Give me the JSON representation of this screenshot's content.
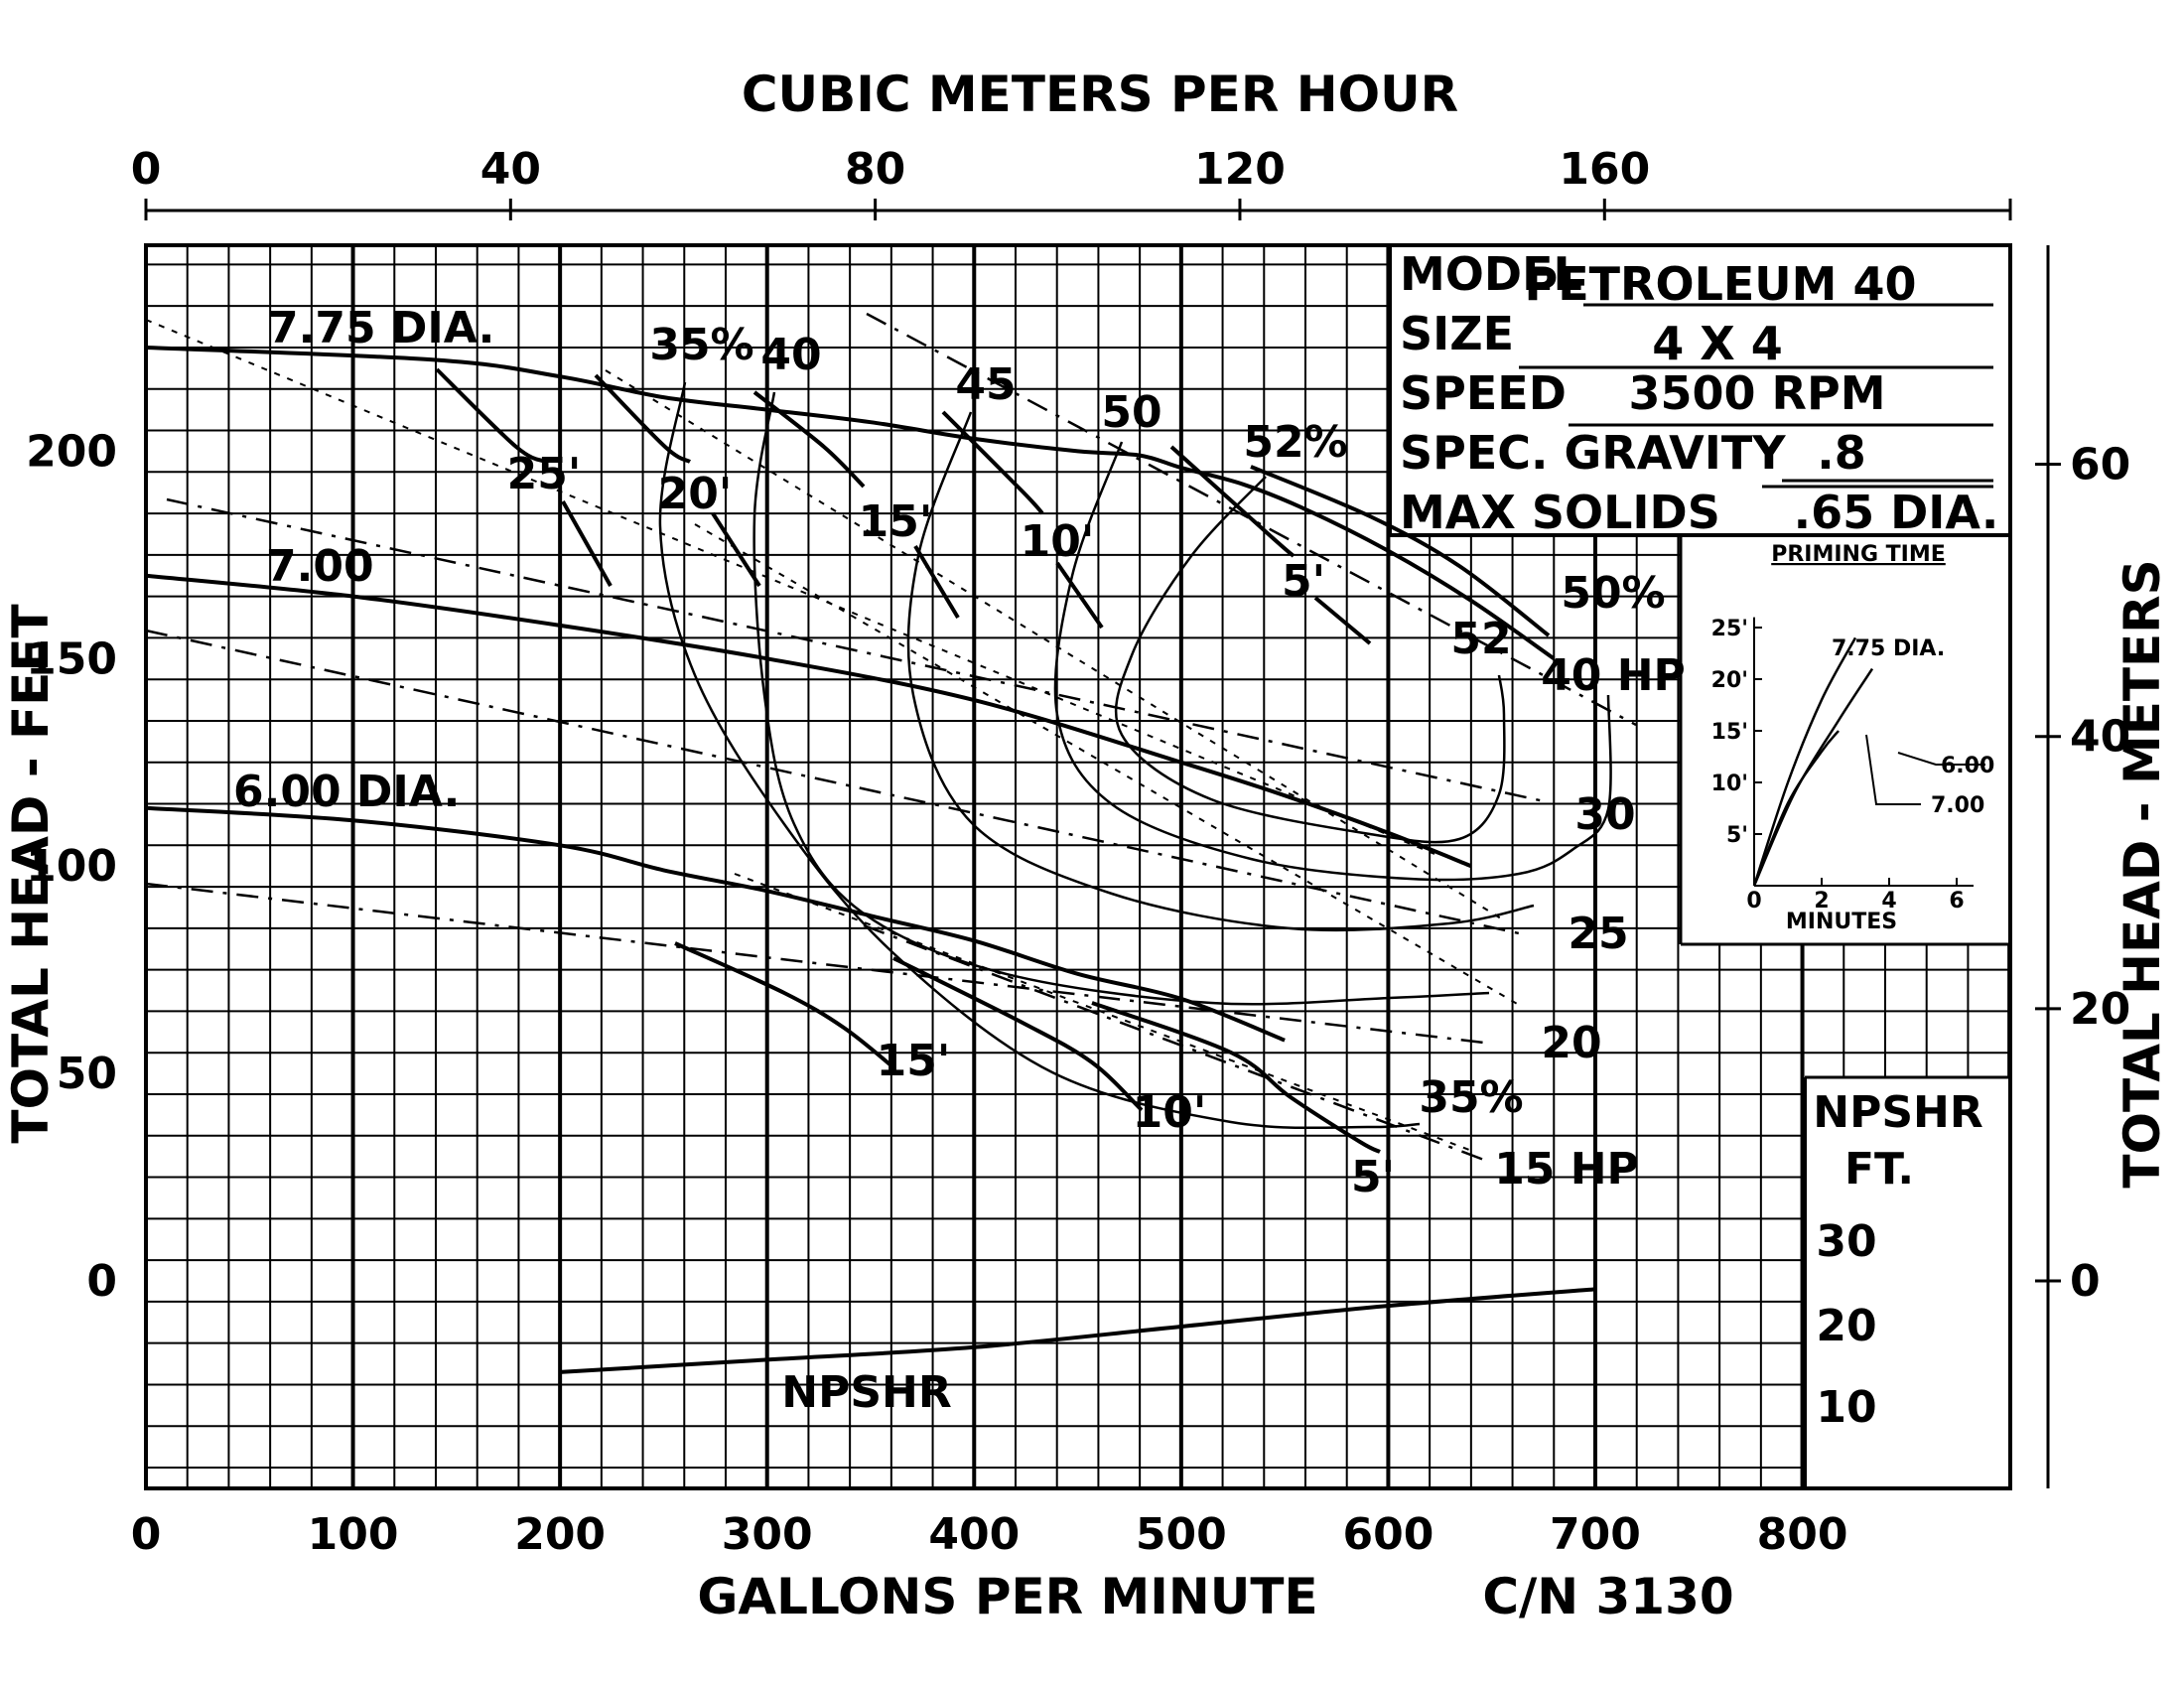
{
  "chart_data": {
    "type": "line",
    "title": "",
    "top_axis": {
      "label": "CUBIC METERS PER HOUR",
      "ticks": [
        0,
        40,
        80,
        120,
        160
      ]
    },
    "x_axis": {
      "label": "GALLONS PER MINUTE",
      "range": [
        0,
        900
      ],
      "ticks": [
        0,
        100,
        200,
        300,
        400,
        500,
        600,
        700,
        800
      ]
    },
    "y_axis": {
      "label": "TOTAL HEAD - FEET",
      "range": [
        -50,
        250
      ],
      "ticks": [
        0,
        50,
        100,
        150,
        200
      ]
    },
    "right_axis": {
      "label": "TOTAL HEAD - METERS",
      "ticks": [
        0,
        20,
        40,
        60
      ]
    },
    "curve_number": "C/N 3130",
    "grid": true,
    "spec_block": {
      "model_label": "MODEL",
      "model": "PETROLEUM 40",
      "size_label": "SIZE",
      "size": "4 X 4",
      "speed_label": "SPEED",
      "speed": "3500 RPM",
      "gravity_label": "SPEC. GRAVITY",
      "gravity": ".8",
      "solids_label": "MAX SOLIDS",
      "solids": ".65 DIA."
    },
    "series": [
      {
        "name": "7.75 DIA.",
        "x": [
          0,
          140,
          200,
          250,
          300,
          350,
          400,
          450,
          480,
          500,
          530,
          560,
          600,
          640,
          680
        ],
        "y": [
          225,
          222,
          218,
          213,
          210,
          207,
          203,
          200,
          199,
          196,
          192,
          186,
          176,
          164,
          150
        ]
      },
      {
        "name": "7.00",
        "x": [
          0,
          100,
          200,
          300,
          400,
          500,
          550,
          600,
          640
        ],
        "y": [
          170,
          165,
          158,
          150,
          140,
          125,
          117,
          108,
          100
        ]
      },
      {
        "name": "6.00 DIA.",
        "x": [
          0,
          100,
          200,
          250,
          300,
          350,
          400,
          450,
          500,
          550
        ],
        "y": [
          114,
          111,
          105,
          99,
          94,
          88,
          82,
          74,
          68,
          58
        ]
      }
    ],
    "npshr_curve": {
      "name": "NPSHR",
      "x": [
        200,
        300,
        400,
        500,
        600,
        700
      ],
      "y": [
        -22,
        -19,
        -16,
        -11,
        -6,
        -2
      ]
    },
    "npshr_axis": {
      "title": "NPSHR",
      "unit": "FT.",
      "ticks": [
        "30",
        "20",
        "10"
      ]
    },
    "efficiency_labels": [
      "35%",
      "40",
      "45",
      "50",
      "52%",
      "52",
      "50%",
      "35%"
    ],
    "hp_labels": [
      "40 HP",
      "30",
      "25",
      "20",
      "15 HP"
    ],
    "npsh_labels": [
      "25'",
      "20'",
      "15'",
      "10'",
      "5'",
      "15'",
      "10'",
      "5'"
    ],
    "inset": {
      "title": "PRIMING TIME",
      "xlabel": "MINUTES",
      "x_ticks": [
        "0",
        "2",
        "4",
        "6"
      ],
      "y_ticks": [
        "25'",
        "20'",
        "15'",
        "10'",
        "5'"
      ],
      "series": [
        {
          "name": "7.75 DIA.",
          "x": [
            0,
            1,
            2,
            3
          ],
          "y": [
            0,
            10,
            18,
            24
          ]
        },
        {
          "name": "7.00",
          "x": [
            0,
            1.2,
            2.5,
            3.5
          ],
          "y": [
            0,
            9,
            16,
            21
          ]
        },
        {
          "name": "6.00",
          "x": [
            0,
            1,
            2,
            2.5
          ],
          "y": [
            0,
            8,
            13,
            15
          ]
        }
      ]
    }
  }
}
